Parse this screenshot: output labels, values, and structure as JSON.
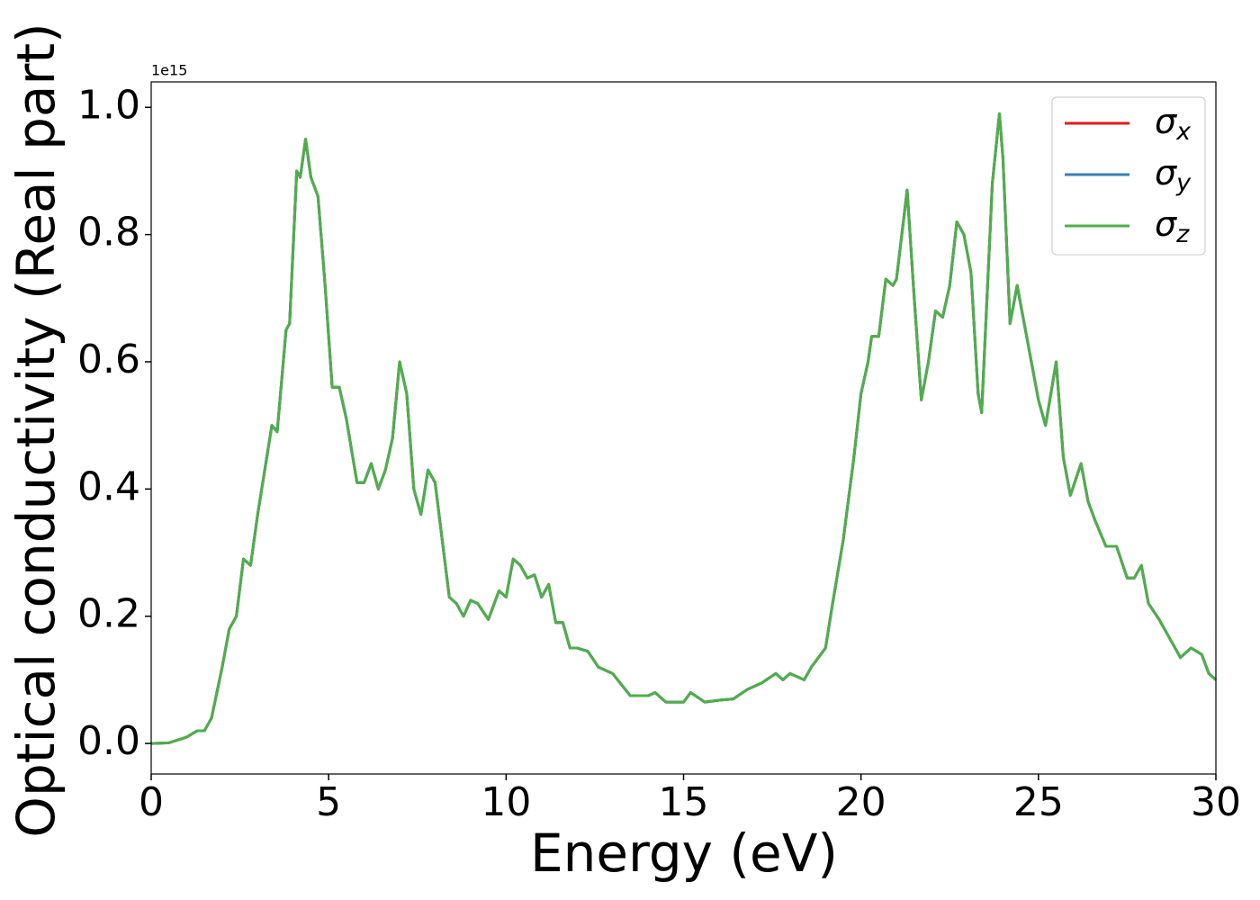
{
  "chart_data": {
    "type": "line",
    "xlabel": "Energy (eV)",
    "ylabel": "Optical conductivity (Real part)",
    "y_offset_text": "1e15",
    "x": [
      0,
      0.5,
      1.0,
      1.3,
      1.5,
      1.7,
      2.0,
      2.2,
      2.4,
      2.6,
      2.8,
      3.0,
      3.2,
      3.4,
      3.55,
      3.8,
      3.9,
      4.1,
      4.2,
      4.35,
      4.5,
      4.7,
      4.9,
      5.1,
      5.3,
      5.5,
      5.8,
      6.0,
      6.2,
      6.4,
      6.6,
      6.8,
      7.0,
      7.2,
      7.4,
      7.6,
      7.8,
      8.0,
      8.2,
      8.4,
      8.6,
      8.8,
      9.0,
      9.2,
      9.5,
      9.8,
      10.0,
      10.2,
      10.4,
      10.6,
      10.8,
      11.0,
      11.2,
      11.4,
      11.6,
      11.8,
      12.0,
      12.3,
      12.6,
      13.0,
      13.5,
      14.0,
      14.2,
      14.5,
      15.0,
      15.2,
      15.6,
      16.0,
      16.4,
      16.8,
      17.2,
      17.6,
      17.8,
      18.0,
      18.4,
      18.6,
      19.0,
      19.2,
      19.5,
      19.8,
      20.0,
      20.2,
      20.3,
      20.5,
      20.7,
      20.9,
      21.0,
      21.3,
      21.5,
      21.7,
      21.9,
      22.1,
      22.3,
      22.5,
      22.7,
      22.9,
      23.1,
      23.3,
      23.4,
      23.7,
      23.9,
      24.0,
      24.2,
      24.4,
      24.6,
      24.8,
      25.0,
      25.2,
      25.5,
      25.7,
      25.9,
      26.2,
      26.4,
      26.6,
      26.9,
      27.2,
      27.5,
      27.7,
      27.9,
      28.1,
      28.4,
      28.7,
      29.0,
      29.3,
      29.6,
      29.8,
      30.0
    ],
    "series": [
      {
        "name": "σx",
        "color": "#e41a1c",
        "values": [
          0,
          0.001,
          0.01,
          0.02,
          0.02,
          0.04,
          0.12,
          0.18,
          0.2,
          0.29,
          0.28,
          0.36,
          0.43,
          0.5,
          0.49,
          0.65,
          0.66,
          0.9,
          0.89,
          0.95,
          0.89,
          0.86,
          0.72,
          0.56,
          0.56,
          0.51,
          0.41,
          0.41,
          0.44,
          0.4,
          0.43,
          0.48,
          0.6,
          0.55,
          0.4,
          0.36,
          0.43,
          0.41,
          0.32,
          0.23,
          0.22,
          0.2,
          0.225,
          0.22,
          0.195,
          0.24,
          0.23,
          0.29,
          0.28,
          0.26,
          0.265,
          0.23,
          0.25,
          0.19,
          0.19,
          0.15,
          0.15,
          0.145,
          0.12,
          0.11,
          0.075,
          0.075,
          0.08,
          0.065,
          0.065,
          0.08,
          0.065,
          0.068,
          0.07,
          0.085,
          0.095,
          0.11,
          0.1,
          0.11,
          0.1,
          0.12,
          0.15,
          0.22,
          0.32,
          0.45,
          0.55,
          0.6,
          0.64,
          0.64,
          0.73,
          0.72,
          0.73,
          0.87,
          0.7,
          0.54,
          0.6,
          0.68,
          0.67,
          0.72,
          0.82,
          0.8,
          0.74,
          0.55,
          0.52,
          0.88,
          0.99,
          0.92,
          0.66,
          0.72,
          0.66,
          0.6,
          0.54,
          0.5,
          0.6,
          0.45,
          0.39,
          0.44,
          0.38,
          0.35,
          0.31,
          0.31,
          0.26,
          0.26,
          0.28,
          0.22,
          0.195,
          0.165,
          0.135,
          0.15,
          0.14,
          0.11,
          0.1
        ]
      },
      {
        "name": "σy",
        "color": "#377eb8",
        "values": [
          0,
          0.001,
          0.01,
          0.02,
          0.02,
          0.04,
          0.12,
          0.18,
          0.2,
          0.29,
          0.28,
          0.36,
          0.43,
          0.5,
          0.49,
          0.65,
          0.66,
          0.9,
          0.89,
          0.95,
          0.89,
          0.86,
          0.72,
          0.56,
          0.56,
          0.51,
          0.41,
          0.41,
          0.44,
          0.4,
          0.43,
          0.48,
          0.6,
          0.55,
          0.4,
          0.36,
          0.43,
          0.41,
          0.32,
          0.23,
          0.22,
          0.2,
          0.225,
          0.22,
          0.195,
          0.24,
          0.23,
          0.29,
          0.28,
          0.26,
          0.265,
          0.23,
          0.25,
          0.19,
          0.19,
          0.15,
          0.15,
          0.145,
          0.12,
          0.11,
          0.075,
          0.075,
          0.08,
          0.065,
          0.065,
          0.08,
          0.065,
          0.068,
          0.07,
          0.085,
          0.095,
          0.11,
          0.1,
          0.11,
          0.1,
          0.12,
          0.15,
          0.22,
          0.32,
          0.45,
          0.55,
          0.6,
          0.64,
          0.64,
          0.73,
          0.72,
          0.73,
          0.87,
          0.7,
          0.54,
          0.6,
          0.68,
          0.67,
          0.72,
          0.82,
          0.8,
          0.74,
          0.55,
          0.52,
          0.88,
          0.99,
          0.92,
          0.66,
          0.72,
          0.66,
          0.6,
          0.54,
          0.5,
          0.6,
          0.45,
          0.39,
          0.44,
          0.38,
          0.35,
          0.31,
          0.31,
          0.26,
          0.26,
          0.28,
          0.22,
          0.195,
          0.165,
          0.135,
          0.15,
          0.14,
          0.11,
          0.1
        ]
      },
      {
        "name": "σz",
        "color": "#4daf4a",
        "values": [
          0,
          0.001,
          0.01,
          0.02,
          0.02,
          0.04,
          0.12,
          0.18,
          0.2,
          0.29,
          0.28,
          0.36,
          0.43,
          0.5,
          0.49,
          0.65,
          0.66,
          0.9,
          0.89,
          0.95,
          0.89,
          0.86,
          0.72,
          0.56,
          0.56,
          0.51,
          0.41,
          0.41,
          0.44,
          0.4,
          0.43,
          0.48,
          0.6,
          0.55,
          0.4,
          0.36,
          0.43,
          0.41,
          0.32,
          0.23,
          0.22,
          0.2,
          0.225,
          0.22,
          0.195,
          0.24,
          0.23,
          0.29,
          0.28,
          0.26,
          0.265,
          0.23,
          0.25,
          0.19,
          0.19,
          0.15,
          0.15,
          0.145,
          0.12,
          0.11,
          0.075,
          0.075,
          0.08,
          0.065,
          0.065,
          0.08,
          0.065,
          0.068,
          0.07,
          0.085,
          0.095,
          0.11,
          0.1,
          0.11,
          0.1,
          0.12,
          0.15,
          0.22,
          0.32,
          0.45,
          0.55,
          0.6,
          0.64,
          0.64,
          0.73,
          0.72,
          0.73,
          0.87,
          0.7,
          0.54,
          0.6,
          0.68,
          0.67,
          0.72,
          0.82,
          0.8,
          0.74,
          0.55,
          0.52,
          0.88,
          0.99,
          0.92,
          0.66,
          0.72,
          0.66,
          0.6,
          0.54,
          0.5,
          0.6,
          0.45,
          0.39,
          0.44,
          0.38,
          0.35,
          0.31,
          0.31,
          0.26,
          0.26,
          0.28,
          0.22,
          0.195,
          0.165,
          0.135,
          0.15,
          0.14,
          0.11,
          0.1
        ]
      }
    ],
    "xlim": [
      0,
      30
    ],
    "xticks": [
      0,
      5,
      10,
      15,
      20,
      25,
      30
    ],
    "ylim": [
      -0.048,
      1.04
    ],
    "yticks": [
      {
        "value": 0,
        "label": "0.0"
      },
      0.2,
      0.4,
      0.6,
      0.8,
      {
        "value": 1,
        "label": "1.0"
      }
    ],
    "grid": false,
    "legend": "upper right"
  }
}
